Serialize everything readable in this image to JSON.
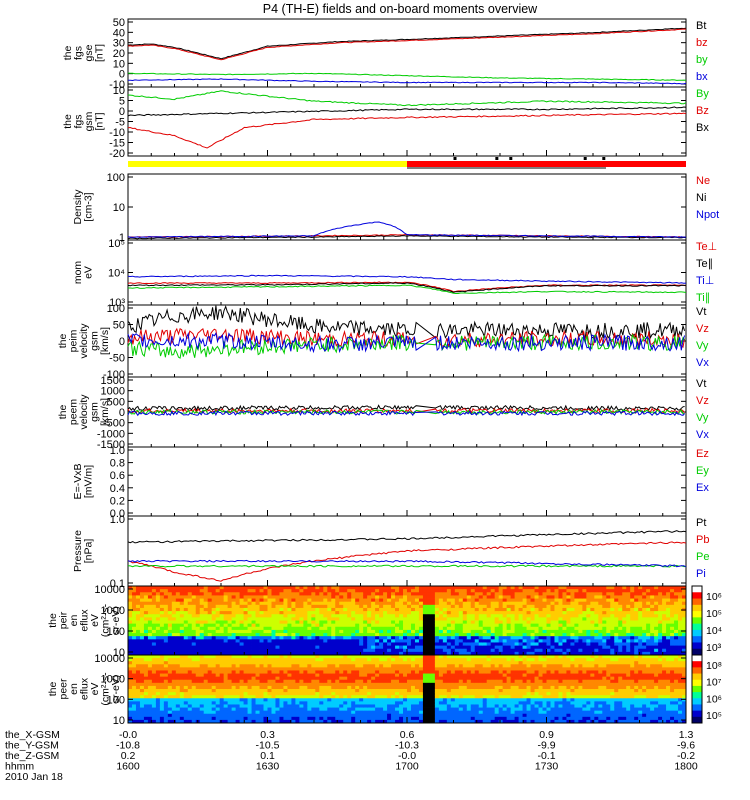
{
  "title": "P4 (TH-E) fields and on-board moments overview",
  "colors": {
    "black": "#000000",
    "red": "#e00000",
    "green": "#00cc00",
    "blue": "#0000dd",
    "yellow": "#ffff00",
    "bar_red": "#ff0000"
  },
  "panels": [
    {
      "id": "fgs-gse",
      "ylabel": [
        "the",
        "fgs",
        "gse",
        "[nT]"
      ],
      "yticks": [
        "50",
        "40",
        "30",
        "20",
        "10",
        "0",
        "-10"
      ],
      "legend": [
        {
          "text": "Bt",
          "color": "black"
        },
        {
          "text": "bz",
          "color": "red"
        },
        {
          "text": "by",
          "color": "green"
        },
        {
          "text": "bx",
          "color": "blue"
        }
      ]
    },
    {
      "id": "fgs-gsm",
      "ylabel": [
        "the",
        "fgs",
        "gsm",
        "[nT]"
      ],
      "yticks": [
        "10",
        "5",
        "0",
        "-5",
        "-10",
        "-15",
        "-20"
      ],
      "legend": [
        {
          "text": "By",
          "color": "green"
        },
        {
          "text": "Bz",
          "color": "red"
        },
        {
          "text": "Bx",
          "color": "black"
        }
      ]
    },
    {
      "id": "density",
      "ylabel": [
        "Density",
        "[cm-3]"
      ],
      "yticks": [
        "100",
        "10",
        "1"
      ],
      "legend": [
        {
          "text": "Ne",
          "color": "red"
        },
        {
          "text": "Ni",
          "color": "black"
        },
        {
          "text": "Npot",
          "color": "blue"
        }
      ]
    },
    {
      "id": "temperature",
      "ylabel": [
        "mom",
        "eV"
      ],
      "yticks": [
        "10⁵",
        "10⁴",
        "10³"
      ],
      "legend": [
        {
          "text": "Te⊥",
          "color": "red"
        },
        {
          "text": "Te∥",
          "color": "black"
        },
        {
          "text": "Ti⊥",
          "color": "blue"
        },
        {
          "text": "Ti∥",
          "color": "green"
        }
      ]
    },
    {
      "id": "peim-velocity",
      "ylabel": [
        "the",
        "peim",
        "velocity",
        "gsm",
        "[km/s]"
      ],
      "yticks": [
        "100",
        "50",
        "0",
        "-50",
        "-100"
      ],
      "legend": [
        {
          "text": "Vt",
          "color": "black"
        },
        {
          "text": "Vz",
          "color": "red"
        },
        {
          "text": "Vy",
          "color": "green"
        },
        {
          "text": "Vx",
          "color": "blue"
        }
      ]
    },
    {
      "id": "peem-velocity",
      "ylabel": [
        "the",
        "peem",
        "velocity",
        "gsm",
        "[km/s]"
      ],
      "yticks": [
        "1500",
        "1000",
        "500",
        "0",
        "-500",
        "-1000",
        "-1500"
      ],
      "legend": [
        {
          "text": "Vt",
          "color": "black"
        },
        {
          "text": "Vz",
          "color": "red"
        },
        {
          "text": "Vy",
          "color": "green"
        },
        {
          "text": "Vx",
          "color": "blue"
        }
      ]
    },
    {
      "id": "efield",
      "ylabel": [
        "E=-VxB",
        "[mV/m]"
      ],
      "yticks": [
        "1.0",
        "0.8",
        "0.6",
        "0.4",
        "0.2",
        "0.0"
      ],
      "legend": [
        {
          "text": "Ez",
          "color": "red"
        },
        {
          "text": "Ey",
          "color": "green"
        },
        {
          "text": "Ex",
          "color": "blue"
        }
      ]
    },
    {
      "id": "pressure",
      "ylabel": [
        "Pressure",
        "[nPa]"
      ],
      "yticks": [
        "1.0",
        "0.1"
      ],
      "legend": [
        {
          "text": "Pt",
          "color": "black"
        },
        {
          "text": "Pb",
          "color": "red"
        },
        {
          "text": "Pe",
          "color": "green"
        },
        {
          "text": "Pi",
          "color": "blue"
        }
      ]
    },
    {
      "id": "peir-spec",
      "ylabel": [
        "the",
        "peir",
        "en",
        "eflux",
        "eV",
        "(cm²-s-",
        "sr-eV)"
      ],
      "yticks": [
        "10000",
        "1000",
        "100",
        "10"
      ],
      "cbar_ticks": [
        "10⁶",
        "10⁵",
        "10⁴",
        "10³"
      ]
    },
    {
      "id": "peer-spec",
      "ylabel": [
        "the",
        "peer",
        "en",
        "eflux",
        "eV",
        "(cm²-s-",
        "sr-eV)"
      ],
      "yticks": [
        "10000",
        "1000",
        "100",
        "10"
      ],
      "cbar_ticks": [
        "10⁸",
        "10⁷",
        "10⁶",
        "10⁵"
      ]
    }
  ],
  "xaxis": {
    "rows": [
      {
        "label": "the_X-GSM",
        "values": [
          "-0.0",
          "0.3",
          "0.6",
          "0.9",
          "1.3"
        ]
      },
      {
        "label": "the_Y-GSM",
        "values": [
          "-10.8",
          "-10.5",
          "-10.3",
          "-9.9",
          "-9.6"
        ]
      },
      {
        "label": "the_Z-GSM",
        "values": [
          "0.2",
          "0.1",
          "-0.0",
          "-0.1",
          "-0.2"
        ]
      },
      {
        "label": "hhmm",
        "values": [
          "1600",
          "1630",
          "1700",
          "1730",
          "1800"
        ]
      }
    ],
    "date": "2010 Jan 18"
  },
  "chart_data": {
    "type": "line",
    "title": "P4 (TH-E) fields and on-board moments overview",
    "x_time_range": [
      "16:00",
      "18:00"
    ],
    "x_ticks_hhmm": [
      "1600",
      "1630",
      "1700",
      "1730",
      "1800"
    ],
    "panels": [
      {
        "name": "the fgs gse [nT]",
        "ylim": [
          -10,
          50
        ],
        "series": [
          {
            "name": "Bt",
            "x": [
              "16:00",
              "16:05",
              "16:10",
              "16:15",
              "16:20",
              "16:30",
              "16:45",
              "17:00",
              "17:20",
              "17:40",
              "18:00"
            ],
            "y": [
              27,
              28,
              25,
              20,
              15,
              26,
              30,
              32,
              35,
              38,
              42
            ]
          },
          {
            "name": "bz",
            "x": [
              "16:00",
              "16:05",
              "16:10",
              "16:15",
              "16:20",
              "16:30",
              "16:45",
              "17:00",
              "17:20",
              "17:40",
              "18:00"
            ],
            "y": [
              26,
              27,
              24,
              19,
              14,
              25,
              29,
              31,
              34,
              37,
              41
            ]
          },
          {
            "name": "by",
            "x": [
              "16:00",
              "16:20",
              "16:40",
              "17:00",
              "17:20",
              "17:40",
              "18:00"
            ],
            "y": [
              2,
              1,
              2,
              0,
              -2,
              -3,
              -4
            ]
          },
          {
            "name": "bx",
            "x": [
              "16:00",
              "16:20",
              "16:40",
              "17:00",
              "17:20",
              "17:40",
              "18:00"
            ],
            "y": [
              -4,
              -3,
              -5,
              -6,
              -6,
              -6,
              -7
            ]
          }
        ]
      },
      {
        "name": "the fgs gsm [nT]",
        "ylim": [
          -22,
          12
        ],
        "series": [
          {
            "name": "By",
            "x": [
              "16:00",
              "16:10",
              "16:20",
              "16:40",
              "17:00",
              "17:30",
              "18:00"
            ],
            "y": [
              8,
              6,
              10,
              5,
              3,
              5,
              4
            ]
          },
          {
            "name": "Bz",
            "x": [
              "16:00",
              "16:10",
              "16:17",
              "16:25",
              "16:40",
              "17:00",
              "17:30",
              "18:00"
            ],
            "y": [
              -8,
              -12,
              -18,
              -8,
              -4,
              -3,
              -2,
              -1
            ]
          },
          {
            "name": "Bx",
            "x": [
              "16:00",
              "16:20",
              "16:40",
              "17:00",
              "17:30",
              "18:00"
            ],
            "y": [
              -2,
              -1,
              0,
              1,
              1,
              2
            ]
          }
        ]
      },
      {
        "name": "Density [cm-3]",
        "log": true,
        "ylim": [
          0.3,
          200
        ],
        "series": [
          {
            "name": "Ne",
            "x": [
              "16:00",
              "16:40",
              "17:00",
              "17:30",
              "18:00"
            ],
            "y": [
              0.4,
              0.45,
              0.5,
              0.45,
              0.4
            ]
          },
          {
            "name": "Ni",
            "x": [
              "16:00",
              "16:40",
              "17:00",
              "17:30",
              "18:00"
            ],
            "y": [
              0.35,
              0.4,
              0.45,
              0.4,
              0.38
            ]
          },
          {
            "name": "Npot",
            "x": [
              "16:00",
              "16:40",
              "16:54",
              "17:00",
              "17:30",
              "18:00"
            ],
            "y": [
              0.4,
              0.45,
              1.8,
              0.5,
              0.45,
              0.4
            ]
          }
        ]
      },
      {
        "name": "mom eV",
        "log": true,
        "ylim": [
          500,
          100000
        ],
        "series": [
          {
            "name": "Te⊥",
            "x": [
              "16:00",
              "16:30",
              "17:00",
              "17:10",
              "17:30",
              "18:00"
            ],
            "y": [
              3000,
              3000,
              3200,
              1500,
              2500,
              2500
            ]
          },
          {
            "name": "Te∥",
            "x": [
              "16:00",
              "16:30",
              "17:00",
              "17:10",
              "17:30",
              "18:00"
            ],
            "y": [
              2500,
              2600,
              3000,
              1400,
              2400,
              2400
            ]
          },
          {
            "name": "Ti⊥",
            "x": [
              "16:00",
              "16:30",
              "17:00",
              "17:10",
              "17:30",
              "18:00"
            ],
            "y": [
              5000,
              5500,
              5000,
              4000,
              3500,
              3000
            ]
          },
          {
            "name": "Ti∥",
            "x": [
              "16:00",
              "16:30",
              "17:00",
              "17:10",
              "17:30",
              "18:00"
            ],
            "y": [
              2000,
              2200,
              2500,
              1300,
              1500,
              1400
            ]
          }
        ]
      },
      {
        "name": "the peim velocity gsm [km/s]",
        "ylim": [
          -100,
          100
        ],
        "series": [
          {
            "name": "Vt",
            "x": [
              "16:00",
              "16:10",
              "16:20",
              "16:40",
              "17:00",
              "17:30",
              "18:00"
            ],
            "y": [
              40,
              70,
              80,
              40,
              30,
              30,
              30
            ]
          },
          {
            "name": "Vz",
            "x": [
              "16:00",
              "16:20",
              "16:40",
              "17:00",
              "17:30",
              "18:00"
            ],
            "y": [
              10,
              20,
              5,
              5,
              5,
              5
            ]
          },
          {
            "name": "Vy",
            "x": [
              "16:00",
              "16:10",
              "16:20",
              "16:40",
              "17:00",
              "17:30",
              "18:00"
            ],
            "y": [
              -20,
              -30,
              -20,
              -10,
              -5,
              -5,
              -5
            ]
          },
          {
            "name": "Vx",
            "x": [
              "16:00",
              "16:20",
              "16:40",
              "17:00",
              "17:30",
              "18:00"
            ],
            "y": [
              0,
              0,
              -10,
              -5,
              -5,
              -5
            ]
          }
        ]
      },
      {
        "name": "the peem velocity gsm [km/s]",
        "ylim": [
          -1500,
          1500
        ],
        "series": [
          {
            "name": "Vt",
            "x": [
              "16:00",
              "17:00",
              "18:00"
            ],
            "y": [
              150,
              200,
              150
            ]
          },
          {
            "name": "Vz",
            "x": [
              "16:00",
              "17:00",
              "18:00"
            ],
            "y": [
              50,
              50,
              50
            ]
          },
          {
            "name": "Vy",
            "x": [
              "16:00",
              "17:00",
              "18:00"
            ],
            "y": [
              0,
              0,
              0
            ]
          },
          {
            "name": "Vx",
            "x": [
              "16:00",
              "17:00",
              "18:00"
            ],
            "y": [
              -50,
              -50,
              -50
            ]
          }
        ]
      },
      {
        "name": "E=-VxB [mV/m]",
        "ylim": [
          0,
          1
        ],
        "series": []
      },
      {
        "name": "Pressure [nPa]",
        "log": true,
        "ylim": [
          0.08,
          2
        ],
        "series": [
          {
            "name": "Pt",
            "x": [
              "16:00",
              "17:00",
              "18:00"
            ],
            "y": [
              0.6,
              0.7,
              1.0
            ]
          },
          {
            "name": "Pb",
            "x": [
              "16:00",
              "16:10",
              "16:20",
              "16:40",
              "17:00",
              "18:00"
            ],
            "y": [
              0.25,
              0.15,
              0.1,
              0.25,
              0.4,
              0.6
            ]
          },
          {
            "name": "Pe",
            "x": [
              "16:00",
              "17:00",
              "18:00"
            ],
            "y": [
              0.2,
              0.2,
              0.2
            ]
          },
          {
            "name": "Pi",
            "x": [
              "16:00",
              "17:00",
              "18:00"
            ],
            "y": [
              0.25,
              0.25,
              0.2
            ]
          }
        ]
      }
    ]
  }
}
